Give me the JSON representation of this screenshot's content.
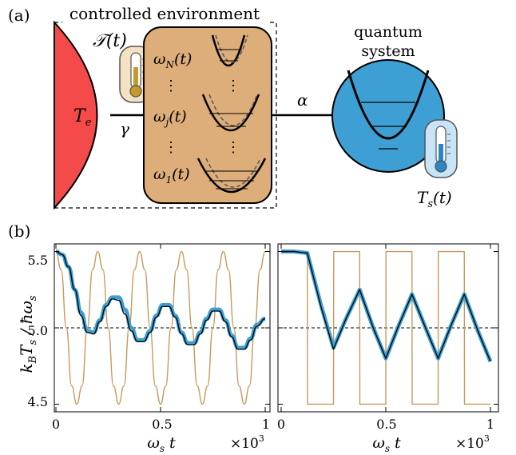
{
  "panel_a": {
    "label": "(a)",
    "env_title": "controlled environment",
    "env_temp": "𝒯(t)",
    "reservoir_temp": "T",
    "reservoir_temp_sub": "e",
    "gamma": "γ",
    "alpha": "α",
    "modes": [
      {
        "w": "ω",
        "sub": "N",
        "arg": "(t)"
      },
      {
        "w": "ω",
        "sub": "j",
        "arg": "(t)"
      },
      {
        "w": "ω",
        "sub": "1",
        "arg": "(t)"
      }
    ],
    "dots": "⋮",
    "quantum_title_line1": "quantum",
    "quantum_title_line2": "system",
    "system_temp": "T",
    "system_temp_sub": "s",
    "system_temp_arg": "(t)",
    "colors": {
      "reservoir": "#f44a4a",
      "environment": "#ddae7a",
      "quantum": "#3d9fd3",
      "thermo_env": "#c49a2a",
      "thermo_sys": "#2a86c4"
    }
  },
  "panel_b": {
    "label": "(b)",
    "ylabel_main": "k",
    "ylabel_sub_B": "B",
    "ylabel_T": "T",
    "ylabel_sub_s": "s",
    "ylabel_den": "ħω",
    "xlabel": "ωs t",
    "xlabel_w": "ω",
    "xlabel_sub": "s",
    "xlabel_t": " t",
    "xscale_label": "×10",
    "xscale_exp": "3",
    "yticks": [
      "5.5",
      "5.0",
      "4.5"
    ],
    "xticks": [
      "0",
      "0.5",
      "1"
    ]
  },
  "chart_data": [
    {
      "type": "line",
      "ylim": [
        4.45,
        5.55
      ],
      "xlim": [
        0,
        1
      ],
      "x_unit_scale": "×10^3",
      "ytick_values": [
        4.5,
        5.0,
        5.5
      ],
      "xtick_values": [
        0,
        0.5,
        1
      ],
      "reference_line": 5.0,
      "series": [
        {
          "color": "#c89a5a",
          "desc": "environment temperature",
          "x": [
            0,
            0.025,
            0.05,
            0.075,
            0.1,
            0.125,
            0.15,
            0.175,
            0.2,
            0.225,
            0.25,
            0.275,
            0.3,
            0.325,
            0.35,
            0.375,
            0.4,
            0.425,
            0.45,
            0.475,
            0.5,
            0.525,
            0.55,
            0.575,
            0.6,
            0.625,
            0.65,
            0.675,
            0.7,
            0.725,
            0.75,
            0.775,
            0.8,
            0.825,
            0.85,
            0.875,
            0.9,
            0.925,
            0.95,
            0.975,
            1.0
          ],
          "y": [
            5.5,
            5.38,
            5.0,
            4.62,
            4.5,
            4.62,
            5.0,
            5.38,
            5.5,
            5.38,
            5.0,
            4.62,
            4.5,
            4.62,
            5.0,
            5.38,
            5.5,
            5.38,
            5.0,
            4.62,
            4.5,
            4.62,
            5.0,
            5.38,
            5.5,
            5.38,
            5.0,
            4.62,
            4.5,
            4.62,
            5.0,
            5.38,
            5.5,
            5.38,
            5.0,
            4.62,
            4.5,
            4.62,
            5.0,
            5.38,
            5.5
          ]
        },
        {
          "color": "#3d9fd3",
          "desc": "simulation",
          "x": [
            0,
            0.03,
            0.06,
            0.09,
            0.12,
            0.15,
            0.18,
            0.21,
            0.24,
            0.27,
            0.3,
            0.33,
            0.36,
            0.39,
            0.42,
            0.45,
            0.48,
            0.51,
            0.54,
            0.57,
            0.6,
            0.63,
            0.66,
            0.69,
            0.72,
            0.75,
            0.78,
            0.81,
            0.84,
            0.87,
            0.9,
            0.93,
            0.96,
            1.0
          ],
          "y": [
            5.5,
            5.48,
            5.4,
            5.25,
            5.1,
            4.98,
            4.97,
            5.05,
            5.15,
            5.2,
            5.2,
            5.12,
            5.0,
            4.92,
            4.92,
            4.98,
            5.08,
            5.15,
            5.15,
            5.08,
            4.97,
            4.9,
            4.9,
            4.97,
            5.06,
            5.12,
            5.12,
            5.05,
            4.95,
            4.87,
            4.87,
            4.93,
            5.02,
            5.06
          ]
        },
        {
          "color": "#000000",
          "desc": "theory",
          "x": [
            0,
            0.03,
            0.06,
            0.09,
            0.12,
            0.15,
            0.18,
            0.21,
            0.24,
            0.27,
            0.3,
            0.33,
            0.36,
            0.39,
            0.42,
            0.45,
            0.48,
            0.51,
            0.54,
            0.57,
            0.6,
            0.63,
            0.66,
            0.69,
            0.72,
            0.75,
            0.78,
            0.81,
            0.84,
            0.87,
            0.9,
            0.93,
            0.96,
            1.0
          ],
          "y": [
            5.5,
            5.48,
            5.4,
            5.25,
            5.08,
            4.97,
            4.96,
            5.04,
            5.14,
            5.19,
            5.18,
            5.09,
            4.98,
            4.91,
            4.91,
            4.97,
            5.07,
            5.14,
            5.14,
            5.07,
            4.96,
            4.89,
            4.89,
            4.96,
            5.05,
            5.11,
            5.11,
            5.04,
            4.94,
            4.86,
            4.86,
            4.92,
            5.01,
            5.06
          ]
        }
      ]
    },
    {
      "type": "line",
      "ylim": [
        4.45,
        5.55
      ],
      "xlim": [
        0,
        1
      ],
      "x_unit_scale": "×10^3",
      "ytick_values": [
        4.5,
        5.0,
        5.5
      ],
      "xtick_values": [
        0,
        0.5,
        1
      ],
      "reference_line": 5.0,
      "series": [
        {
          "color": "#c89a5a",
          "desc": "environment temperature",
          "x": [
            0,
            0.125,
            0.126,
            0.25,
            0.251,
            0.375,
            0.376,
            0.5,
            0.501,
            0.625,
            0.626,
            0.75,
            0.751,
            0.875,
            0.876,
            1.0
          ],
          "y": [
            5.5,
            5.5,
            4.5,
            4.5,
            5.5,
            5.5,
            4.5,
            4.5,
            5.5,
            5.5,
            4.5,
            4.5,
            5.5,
            5.5,
            4.5,
            4.5
          ]
        },
        {
          "color": "#3d9fd3",
          "desc": "simulation",
          "x": [
            0,
            0.06,
            0.125,
            0.19,
            0.25,
            0.31,
            0.375,
            0.44,
            0.5,
            0.56,
            0.625,
            0.69,
            0.75,
            0.81,
            0.875,
            0.94,
            1.0
          ],
          "y": [
            5.5,
            5.5,
            5.49,
            5.15,
            4.87,
            5.06,
            5.25,
            5.0,
            4.8,
            5.01,
            5.22,
            5.0,
            4.8,
            5.01,
            5.22,
            4.98,
            4.78
          ]
        },
        {
          "color": "#000000",
          "desc": "theory",
          "x": [
            0,
            0.06,
            0.125,
            0.19,
            0.25,
            0.31,
            0.375,
            0.44,
            0.5,
            0.56,
            0.625,
            0.69,
            0.75,
            0.81,
            0.875,
            0.94,
            1.0
          ],
          "y": [
            5.5,
            5.5,
            5.49,
            5.14,
            4.86,
            5.06,
            5.25,
            5.0,
            4.8,
            5.01,
            5.22,
            5.0,
            4.8,
            5.01,
            5.22,
            4.98,
            4.78
          ]
        }
      ]
    }
  ]
}
